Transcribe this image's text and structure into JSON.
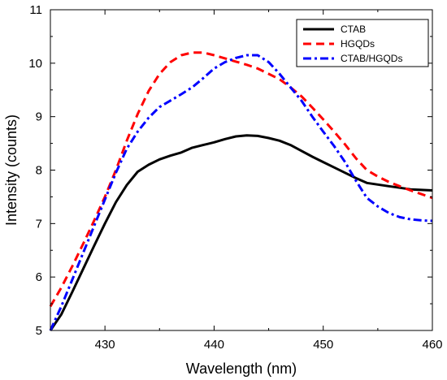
{
  "chart_data": {
    "type": "line",
    "xlabel": "Wavelength (nm)",
    "ylabel": "Intensity (counts)",
    "xlim": [
      425,
      460
    ],
    "ylim": [
      5,
      11
    ],
    "x_ticks": [
      430,
      440,
      450,
      460
    ],
    "y_ticks": [
      5,
      6,
      7,
      8,
      9,
      10,
      11
    ],
    "x_tick_labels": [
      "430",
      "440",
      "450",
      "460"
    ],
    "y_tick_labels": [
      "5",
      "6",
      "7",
      "8",
      "9",
      "10",
      "11"
    ],
    "grid": false,
    "legend_position": "top-right",
    "series": [
      {
        "name": "CTAB",
        "color": "#000000",
        "dash": "solid",
        "x": [
          425,
          426,
          427,
          428,
          429,
          430,
          431,
          432,
          433,
          434,
          435,
          436,
          437,
          438,
          439,
          440,
          441,
          442,
          443,
          444,
          445,
          446,
          447,
          448,
          449,
          450,
          451,
          452,
          453,
          454,
          455,
          456,
          457,
          458,
          459,
          460
        ],
        "y": [
          5.0,
          5.3,
          5.72,
          6.15,
          6.58,
          7.0,
          7.4,
          7.72,
          7.97,
          8.1,
          8.2,
          8.27,
          8.33,
          8.42,
          8.47,
          8.52,
          8.58,
          8.63,
          8.65,
          8.64,
          8.6,
          8.55,
          8.47,
          8.36,
          8.25,
          8.15,
          8.05,
          7.95,
          7.85,
          7.76,
          7.73,
          7.7,
          7.67,
          7.64,
          7.63,
          7.62
        ]
      },
      {
        "name": "HGQDs",
        "color": "#ff0000",
        "dash": "dashed",
        "x": [
          425,
          426,
          427,
          428,
          429,
          430,
          431,
          432,
          433,
          434,
          435,
          436,
          437,
          438,
          439,
          440,
          441,
          442,
          443,
          444,
          445,
          446,
          447,
          448,
          449,
          450,
          451,
          452,
          453,
          454,
          455,
          456,
          457,
          458,
          459,
          460
        ],
        "y": [
          5.45,
          5.8,
          6.2,
          6.62,
          7.05,
          7.5,
          8.0,
          8.55,
          9.05,
          9.48,
          9.8,
          10.02,
          10.15,
          10.2,
          10.2,
          10.15,
          10.09,
          10.03,
          9.97,
          9.9,
          9.8,
          9.7,
          9.55,
          9.38,
          9.17,
          8.95,
          8.72,
          8.48,
          8.22,
          8.0,
          7.88,
          7.78,
          7.7,
          7.62,
          7.55,
          7.48
        ]
      },
      {
        "name": "CTAB/HGQDs",
        "color": "#0000ff",
        "dash": "dashdot",
        "x": [
          425,
          426,
          427,
          428,
          429,
          430,
          431,
          432,
          433,
          434,
          435,
          436,
          437,
          438,
          439,
          440,
          441,
          442,
          443,
          444,
          445,
          446,
          447,
          448,
          449,
          450,
          451,
          452,
          453,
          454,
          455,
          456,
          457,
          458,
          459,
          460
        ],
        "y": [
          5.0,
          5.45,
          5.95,
          6.45,
          6.95,
          7.45,
          7.95,
          8.4,
          8.72,
          8.98,
          9.18,
          9.3,
          9.42,
          9.55,
          9.72,
          9.9,
          10.02,
          10.1,
          10.15,
          10.15,
          10.02,
          9.8,
          9.55,
          9.3,
          9.0,
          8.72,
          8.45,
          8.15,
          7.8,
          7.48,
          7.32,
          7.2,
          7.12,
          7.08,
          7.06,
          7.05
        ]
      }
    ]
  }
}
